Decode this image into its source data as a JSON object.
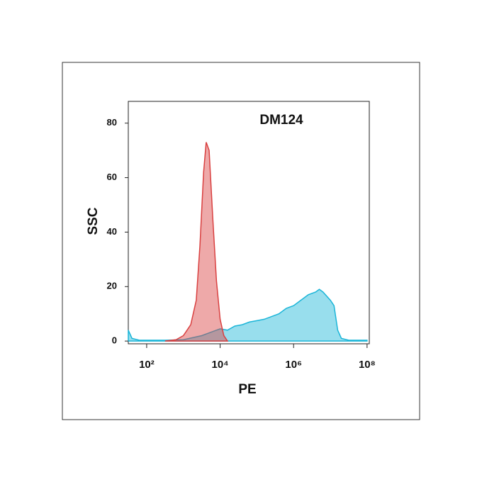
{
  "chart_data": {
    "type": "area",
    "title": "DM124",
    "x_label": "PE",
    "y_label": "SSC",
    "xscale": "log",
    "xlim": [
      31.6,
      115000000
    ],
    "xticks": [
      {
        "value": 100,
        "label": "10²"
      },
      {
        "value": 10000,
        "label": "10⁴"
      },
      {
        "value": 1000000,
        "label": "10⁶"
      },
      {
        "value": 100000000,
        "label": "10⁸"
      }
    ],
    "ylim": [
      -1,
      88
    ],
    "yticks": [
      0,
      20,
      40,
      60,
      80
    ],
    "series": [
      {
        "color": "#1bb5d8",
        "x": [
          31.6,
          39.8,
          63.1,
          316,
          1000,
          3162,
          6310,
          10000,
          15849,
          25119,
          39811,
          63096,
          100000,
          158489,
          251189,
          398107,
          630957,
          1000000,
          1584893,
          2511886,
          3981072,
          5011872,
          6309573,
          10000000,
          12589254,
          15848932,
          19952623,
          31622777,
          100000000
        ],
        "values": [
          4,
          1,
          0.3,
          0.3,
          0.5,
          2,
          3.5,
          4.5,
          4,
          5.5,
          6,
          7,
          7.5,
          8,
          9,
          10,
          12,
          13,
          15,
          17,
          18,
          19,
          18,
          15,
          13,
          4,
          1,
          0.3,
          0.3
        ]
      },
      {
        "color": "#d94040",
        "x": [
          316,
          631,
          1000,
          1585,
          2239,
          2818,
          3548,
          4169,
          5012,
          6310,
          7943,
          10000,
          12589,
          15849
        ],
        "values": [
          0,
          0.5,
          2,
          6,
          15,
          35,
          62,
          73,
          70,
          45,
          22,
          8,
          2,
          0
        ]
      }
    ]
  }
}
